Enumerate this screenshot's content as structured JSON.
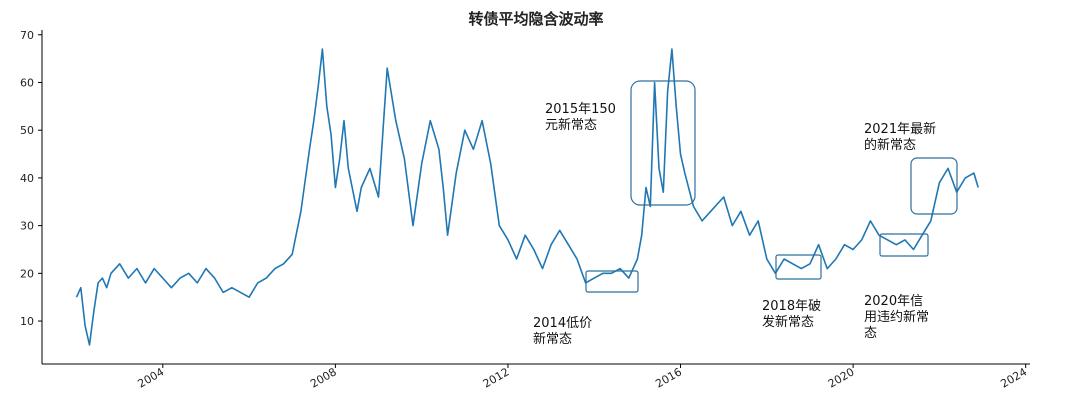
{
  "chart_data": {
    "type": "line",
    "title": "转债平均隐含波动率",
    "xlabel": "",
    "ylabel": "",
    "xlim": [
      2001.2,
      2024.1
    ],
    "ylim": [
      1,
      71
    ],
    "xticks": [
      2004,
      2008,
      2012,
      2016,
      2020,
      2024
    ],
    "yticks": [
      10,
      20,
      30,
      40,
      50,
      60,
      70
    ],
    "grid": false,
    "series": [
      {
        "x": [
          2002.0,
          2002.1,
          2002.2,
          2002.3,
          2002.4,
          2002.5,
          2002.6,
          2002.7,
          2002.8,
          2003.0,
          2003.2,
          2003.4,
          2003.6,
          2003.8,
          2004.0,
          2004.2,
          2004.4,
          2004.6,
          2004.8,
          2005.0,
          2005.2,
          2005.4,
          2005.6,
          2005.8,
          2006.0,
          2006.2,
          2006.4,
          2006.6,
          2006.8,
          2007.0,
          2007.2,
          2007.4,
          2007.5,
          2007.6,
          2007.7,
          2007.8,
          2007.9,
          2008.0,
          2008.1,
          2008.2,
          2008.3,
          2008.5,
          2008.6,
          2008.8,
          2009.0,
          2009.2,
          2009.4,
          2009.6,
          2009.8,
          2010.0,
          2010.2,
          2010.4,
          2010.5,
          2010.6,
          2010.8,
          2011.0,
          2011.2,
          2011.4,
          2011.6,
          2011.8,
          2012.0,
          2012.2,
          2012.4,
          2012.6,
          2012.8,
          2013.0,
          2013.2,
          2013.4,
          2013.6,
          2013.8,
          2014.0,
          2014.2,
          2014.4,
          2014.6,
          2014.8,
          2015.0,
          2015.1,
          2015.2,
          2015.3,
          2015.4,
          2015.5,
          2015.6,
          2015.7,
          2015.8,
          2015.9,
          2016.0,
          2016.1,
          2016.3,
          2016.5,
          2016.7,
          2017.0,
          2017.2,
          2017.4,
          2017.6,
          2017.8,
          2018.0,
          2018.2,
          2018.4,
          2018.6,
          2018.8,
          2019.0,
          2019.2,
          2019.4,
          2019.6,
          2019.8,
          2020.0,
          2020.2,
          2020.4,
          2020.6,
          2020.8,
          2021.0,
          2021.2,
          2021.4,
          2021.6,
          2021.8,
          2022.0,
          2022.2,
          2022.4,
          2022.6,
          2022.8,
          2022.9
        ],
        "values": [
          15,
          17,
          9,
          5,
          12,
          18,
          19,
          17,
          20,
          22,
          19,
          21,
          18,
          21,
          19,
          17,
          19,
          20,
          18,
          21,
          19,
          16,
          17,
          16,
          15,
          18,
          19,
          21,
          22,
          24,
          33,
          46,
          52,
          59,
          67,
          55,
          49,
          38,
          44,
          52,
          42,
          33,
          38,
          42,
          36,
          63,
          52,
          44,
          30,
          43,
          52,
          46,
          38,
          28,
          41,
          50,
          46,
          52,
          43,
          30,
          27,
          23,
          28,
          25,
          21,
          26,
          29,
          26,
          23,
          18,
          19,
          20,
          20,
          21,
          19,
          23,
          28,
          38,
          34,
          60,
          42,
          37,
          58,
          67,
          55,
          45,
          41,
          34,
          31,
          33,
          36,
          30,
          33,
          28,
          31,
          23,
          20,
          23,
          22,
          21,
          22,
          26,
          21,
          23,
          26,
          25,
          27,
          31,
          28,
          27,
          26,
          27,
          25,
          28,
          31,
          39,
          42,
          37,
          40,
          41,
          38
        ]
      }
    ],
    "annotations": [
      {
        "lines": [
          "2014低价",
          "新常态"
        ]
      },
      {
        "lines": [
          "2015年150",
          "元新常态"
        ]
      },
      {
        "lines": [
          "2018年破",
          "发新常态"
        ]
      },
      {
        "lines": [
          "2020年信",
          "用违约新常",
          "态"
        ]
      },
      {
        "lines": [
          "2021年最新",
          "的新常态"
        ]
      }
    ]
  }
}
